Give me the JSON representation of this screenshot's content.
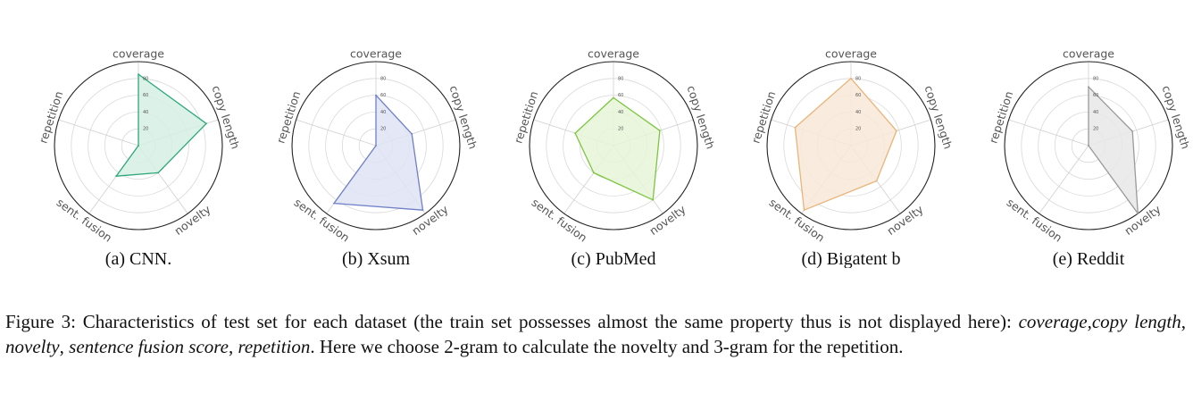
{
  "chart_data": [
    {
      "type": "radar",
      "caption": "(a) CNN.",
      "axes": [
        "coverage",
        "copy length",
        "novelty",
        "sent. fusion",
        "repetition"
      ],
      "ticks": [
        20,
        40,
        60,
        80
      ],
      "rmax": 100,
      "color": "#2ca87a",
      "fill": "#d6efe4",
      "values": [
        85,
        85,
        40,
        45,
        0
      ]
    },
    {
      "type": "radar",
      "caption": "(b) Xsum",
      "axes": [
        "coverage",
        "copy length",
        "novelty",
        "sent. fusion",
        "repetition"
      ],
      "ticks": [
        20,
        40,
        60,
        80
      ],
      "rmax": 100,
      "color": "#6f7fc8",
      "fill": "#dfe3f4",
      "values": [
        60,
        45,
        95,
        85,
        0
      ]
    },
    {
      "type": "radar",
      "caption": "(c) PubMed",
      "axes": [
        "coverage",
        "copy length",
        "novelty",
        "sent. fusion",
        "repetition"
      ],
      "ticks": [
        20,
        40,
        60,
        80
      ],
      "rmax": 100,
      "color": "#7cc63f",
      "fill": "#e6f5d8",
      "values": [
        57,
        58,
        80,
        40,
        48
      ]
    },
    {
      "type": "radar",
      "caption": "(d) Bigatent b",
      "axes": [
        "coverage",
        "copy length",
        "novelty",
        "sent. fusion",
        "repetition"
      ],
      "ticks": [
        20,
        40,
        60,
        80
      ],
      "rmax": 100,
      "color": "#e9b478",
      "fill": "#f8e9d8",
      "values": [
        80,
        57,
        52,
        95,
        70
      ]
    },
    {
      "type": "radar",
      "caption": "(e) Reddit",
      "axes": [
        "coverage",
        "copy length",
        "novelty",
        "sent. fusion",
        "repetition"
      ],
      "ticks": [
        20,
        40,
        60,
        80
      ],
      "rmax": 100,
      "color": "#9a9a9a",
      "fill": "#e7e7e7",
      "values": [
        70,
        55,
        100,
        0,
        0
      ]
    }
  ],
  "caption": {
    "lead": "Figure 3: Characteristics of test set for each dataset (the train set possesses almost the same property thus is not displayed here): ",
    "term_coverage": "coverage",
    "sep1": ",",
    "term_copy": "copy length",
    "sep2": ", ",
    "term_novelty": "novelty",
    "sep3": ", ",
    "term_fusion": "sentence fusion score",
    "sep4": ", ",
    "term_repetition": "repetition",
    "tail": ". Here we choose 2-gram to calculate the novelty and 3-gram for the repetition."
  }
}
